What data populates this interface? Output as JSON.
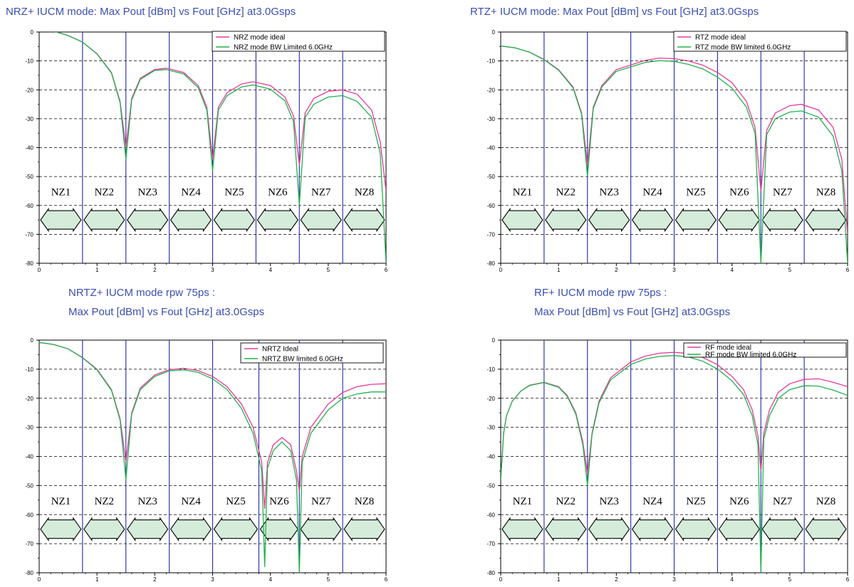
{
  "colors": {
    "ideal": "#e8399a",
    "limited": "#22b24c",
    "vline": "#1f2aa8",
    "grid": "#000000",
    "title": "#3b4fb0",
    "arrow_fill": "#d4ecd9",
    "arrow_stroke": "#000000"
  },
  "chart_data": [
    {
      "type": "line",
      "title_lines": [
        "NRZ+ IUCM mode: Max Pout [dBm] vs Fout [GHz] at3.0Gsps"
      ],
      "xlim": [
        0,
        6
      ],
      "ylim": [
        -80,
        0
      ],
      "x_ticks": [
        "0",
        "1",
        "2",
        "3",
        "4",
        "5",
        "6"
      ],
      "y_ticks": [
        "0",
        "-10",
        "-20",
        "-30",
        "-40",
        "-50",
        "-60",
        "-70",
        "-80"
      ],
      "grid": "horizontal dashed",
      "zone_lines": [
        0.75,
        1.5,
        2.25,
        3.0,
        3.75,
        4.5,
        5.25
      ],
      "zones": [
        "NZ1",
        "NZ2",
        "NZ3",
        "NZ4",
        "NZ5",
        "NZ6",
        "NZ7",
        "NZ8"
      ],
      "legend_position": "top-right",
      "series": [
        {
          "name": "NRZ mode ideal",
          "color_key": "ideal",
          "x": [
            0,
            0.25,
            0.5,
            0.75,
            1.0,
            1.25,
            1.4,
            1.5,
            1.6,
            1.75,
            2.0,
            2.2,
            2.5,
            2.75,
            2.9,
            3.0,
            3.1,
            3.25,
            3.5,
            3.7,
            4.0,
            4.25,
            4.4,
            4.5,
            4.6,
            4.75,
            5.0,
            5.25,
            5.5,
            5.75,
            5.9,
            6.0
          ],
          "y": [
            0.8,
            0.3,
            -1.2,
            -3.5,
            -7.5,
            -14,
            -24,
            -40,
            -23,
            -16,
            -13,
            -12.5,
            -14,
            -18.5,
            -26,
            -44,
            -26,
            -21,
            -18,
            -17.2,
            -18.5,
            -22.5,
            -29,
            -46,
            -28,
            -23,
            -20.5,
            -20,
            -21.5,
            -27,
            -38,
            -55
          ]
        },
        {
          "name": "NRZ mode BW Limited 6.0GHz",
          "color_key": "limited",
          "x": [
            0,
            0.25,
            0.5,
            0.75,
            1.0,
            1.25,
            1.4,
            1.5,
            1.6,
            1.75,
            2.0,
            2.2,
            2.5,
            2.75,
            2.9,
            3.0,
            3.1,
            3.25,
            3.5,
            3.7,
            4.0,
            4.25,
            4.4,
            4.5,
            4.6,
            4.75,
            5.0,
            5.25,
            5.5,
            5.75,
            5.9,
            6.0
          ],
          "y": [
            0.8,
            0.3,
            -1.2,
            -3.5,
            -7.6,
            -14.2,
            -24.5,
            -44,
            -23.5,
            -16.4,
            -13.3,
            -13,
            -14.5,
            -19.2,
            -27,
            -48,
            -27,
            -22,
            -19,
            -18.3,
            -19.8,
            -23.8,
            -31,
            -60,
            -29.5,
            -25,
            -22.5,
            -22,
            -24,
            -29.5,
            -42,
            -80
          ]
        }
      ]
    },
    {
      "type": "line",
      "title_lines": [
        "RTZ+ IUCM mode: Max Pout [dBm] vs Fout [GHz] at3.0Gsps"
      ],
      "xlim": [
        0,
        6
      ],
      "ylim": [
        -80,
        0
      ],
      "x_ticks": [
        "0",
        "1",
        "2",
        "3",
        "4",
        "5",
        "6"
      ],
      "y_ticks": [
        "0",
        "-10",
        "-20",
        "-30",
        "-40",
        "-50",
        "-60",
        "-70",
        "-80"
      ],
      "grid": "horizontal dashed",
      "zone_lines": [
        0.75,
        1.5,
        2.25,
        3.0,
        3.75,
        4.5,
        5.25
      ],
      "zones": [
        "NZ1",
        "NZ2",
        "NZ3",
        "NZ4",
        "NZ5",
        "NZ6",
        "NZ7",
        "NZ8"
      ],
      "legend_position": "top-right",
      "series": [
        {
          "name": "RTZ mode ideal",
          "color_key": "ideal",
          "x": [
            0,
            0.25,
            0.5,
            0.75,
            1.0,
            1.25,
            1.4,
            1.5,
            1.6,
            1.75,
            2.0,
            2.5,
            2.75,
            3.0,
            3.25,
            3.5,
            3.75,
            4.0,
            4.25,
            4.4,
            4.5,
            4.6,
            4.75,
            5.0,
            5.2,
            5.5,
            5.75,
            5.9,
            6.0
          ],
          "y": [
            -4.8,
            -5.5,
            -7,
            -9.5,
            -13,
            -19,
            -28,
            -46,
            -26,
            -18.5,
            -13,
            -9.8,
            -9,
            -9.2,
            -10,
            -11.5,
            -14,
            -17.5,
            -24,
            -33,
            -55,
            -34,
            -28,
            -25.5,
            -25,
            -27,
            -33,
            -44,
            -70
          ]
        },
        {
          "name": "RTZ mode BW limited 6.0GHz",
          "color_key": "limited",
          "x": [
            0,
            0.25,
            0.5,
            0.75,
            1.0,
            1.25,
            1.4,
            1.5,
            1.6,
            1.75,
            2.0,
            2.5,
            2.75,
            3.0,
            3.25,
            3.5,
            3.75,
            4.0,
            4.25,
            4.4,
            4.5,
            4.6,
            4.75,
            5.0,
            5.2,
            5.5,
            5.75,
            5.9,
            6.0
          ],
          "y": [
            -4.8,
            -5.5,
            -7,
            -9.6,
            -13.2,
            -19.3,
            -28.5,
            -50,
            -26.5,
            -19,
            -13.6,
            -10.5,
            -9.9,
            -10.2,
            -11.2,
            -12.8,
            -15.6,
            -19.4,
            -26,
            -35,
            -80,
            -35.5,
            -30,
            -27.7,
            -27.3,
            -29.5,
            -36,
            -48,
            -80
          ]
        }
      ]
    },
    {
      "type": "line",
      "title_lines": [
        "NRTZ+ IUCM mode rpw 75ps :",
        "Max Pout [dBm] vs Fout [GHz] at3.0Gsps"
      ],
      "xlim": [
        0,
        6
      ],
      "ylim": [
        -80,
        0
      ],
      "x_ticks": [
        "0",
        "1",
        "2",
        "3",
        "4",
        "5",
        "6"
      ],
      "y_ticks": [
        "0",
        "-10",
        "-20",
        "-30",
        "-40",
        "-50",
        "-60",
        "-70",
        "-80"
      ],
      "grid": "horizontal dashed",
      "zone_lines": [
        0.75,
        1.5,
        2.25,
        3.0,
        3.8,
        4.5,
        5.25
      ],
      "zones": [
        "NZ1",
        "NZ2",
        "NZ3",
        "NZ4",
        "NZ5",
        "NZ6",
        "NZ7",
        "NZ8"
      ],
      "legend_position": "top-right",
      "series": [
        {
          "name": "NRTZ Ideal",
          "color_key": "ideal",
          "x": [
            0,
            0.25,
            0.5,
            0.75,
            1.0,
            1.25,
            1.4,
            1.5,
            1.6,
            1.75,
            2.0,
            2.25,
            2.5,
            2.75,
            3.0,
            3.25,
            3.5,
            3.7,
            3.85,
            3.9,
            3.95,
            4.05,
            4.2,
            4.35,
            4.45,
            4.5,
            4.55,
            4.7,
            5.0,
            5.25,
            5.5,
            5.75,
            6.0
          ],
          "y": [
            -0.8,
            -1.5,
            -3,
            -6,
            -10,
            -17,
            -27,
            -42,
            -25,
            -16.5,
            -12,
            -10.2,
            -9.7,
            -10.5,
            -12.5,
            -16,
            -22,
            -30,
            -42,
            -58,
            -42,
            -36,
            -33.5,
            -36,
            -45,
            -52,
            -40,
            -30,
            -22,
            -18,
            -16,
            -15.2,
            -15
          ]
        },
        {
          "name": "NRTZ BW limited 6.0GHz",
          "color_key": "limited",
          "x": [
            0,
            0.25,
            0.5,
            0.75,
            1.0,
            1.25,
            1.4,
            1.5,
            1.6,
            1.75,
            2.0,
            2.25,
            2.5,
            2.75,
            3.0,
            3.25,
            3.5,
            3.7,
            3.85,
            3.9,
            3.95,
            4.05,
            4.2,
            4.35,
            4.45,
            4.5,
            4.55,
            4.7,
            5.0,
            5.25,
            5.5,
            5.75,
            6.0
          ],
          "y": [
            -0.8,
            -1.5,
            -3,
            -6.1,
            -10.2,
            -17.3,
            -27.5,
            -48,
            -25.5,
            -17,
            -12.5,
            -10.6,
            -10.2,
            -11.1,
            -13.3,
            -17,
            -23.5,
            -32,
            -45,
            -78,
            -44,
            -38,
            -35,
            -38,
            -48,
            -80,
            -42,
            -32,
            -24,
            -20,
            -18.5,
            -17.8,
            -17.8
          ]
        }
      ]
    },
    {
      "type": "line",
      "title_lines": [
        "RF+ IUCM mode rpw 75ps :",
        "Max Pout [dBm] vs Fout [GHz] at3.0Gsps"
      ],
      "xlim": [
        0,
        6
      ],
      "ylim": [
        -80,
        0
      ],
      "x_ticks": [
        "0",
        "1",
        "2",
        "3",
        "4",
        "5",
        "6"
      ],
      "y_ticks": [
        "0",
        "-10",
        "-20",
        "-30",
        "-40",
        "-50",
        "-60",
        "-70",
        "-80"
      ],
      "grid": "horizontal dashed",
      "zone_lines": [
        0.75,
        1.5,
        2.25,
        3.0,
        3.75,
        4.5,
        5.25
      ],
      "zones": [
        "NZ1",
        "NZ2",
        "NZ3",
        "NZ4",
        "NZ5",
        "NZ6",
        "NZ7",
        "NZ8"
      ],
      "legend_position": "top-right",
      "series": [
        {
          "name": "RF mode ideal",
          "color_key": "ideal",
          "x": [
            0,
            0.05,
            0.1,
            0.2,
            0.35,
            0.5,
            0.75,
            1.0,
            1.15,
            1.3,
            1.42,
            1.5,
            1.58,
            1.7,
            1.9,
            2.25,
            2.5,
            2.75,
            3.0,
            3.25,
            3.5,
            3.75,
            4.0,
            4.2,
            4.35,
            4.45,
            4.5,
            4.55,
            4.65,
            4.8,
            5.0,
            5.25,
            5.5,
            5.75,
            6.0
          ],
          "y": [
            -48,
            -32,
            -26,
            -21,
            -17.5,
            -15.5,
            -14.5,
            -16,
            -19,
            -25,
            -35,
            -46,
            -32,
            -21,
            -13,
            -7.5,
            -5.5,
            -4.5,
            -4.2,
            -4.6,
            -6,
            -8.5,
            -12.5,
            -17,
            -24,
            -33,
            -45,
            -32,
            -24,
            -18,
            -15,
            -13.5,
            -13.3,
            -14.5,
            -16
          ]
        },
        {
          "name": "RF mode BW limited 6.0GHz",
          "color_key": "limited",
          "x": [
            0,
            0.05,
            0.1,
            0.2,
            0.35,
            0.5,
            0.75,
            1.0,
            1.15,
            1.3,
            1.42,
            1.5,
            1.58,
            1.7,
            1.9,
            2.25,
            2.5,
            2.75,
            3.0,
            3.25,
            3.5,
            3.75,
            4.0,
            4.2,
            4.35,
            4.45,
            4.5,
            4.55,
            4.65,
            4.8,
            5.0,
            5.25,
            5.5,
            5.75,
            6.0
          ],
          "y": [
            -48,
            -32,
            -26,
            -21,
            -17.5,
            -15.6,
            -14.6,
            -16.2,
            -19.3,
            -25.5,
            -36,
            -50,
            -32.5,
            -21.6,
            -13.7,
            -8.4,
            -6.5,
            -5.6,
            -5.3,
            -5.8,
            -7.3,
            -9.9,
            -14,
            -18.7,
            -26,
            -36,
            -80,
            -34,
            -26,
            -20,
            -17,
            -15.7,
            -15.8,
            -17.2,
            -19
          ]
        }
      ]
    }
  ]
}
